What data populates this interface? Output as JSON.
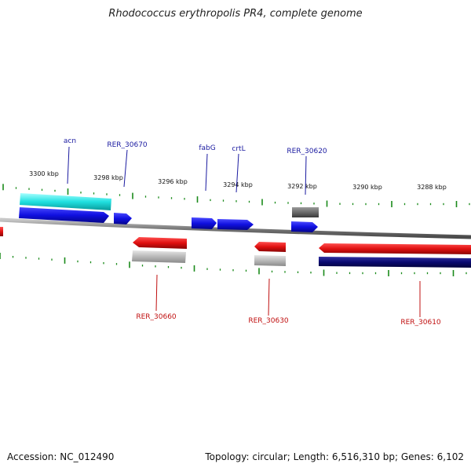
{
  "title": "Rhodococcus erythropolis PR4, complete genome",
  "footer": {
    "accession": "Accession: NC_012490",
    "summary": "Topology: circular; Length: 6,516,310 bp; Genes: 6,102"
  },
  "scale_labels": [
    "3300 kbp",
    "3298 kbp",
    "3296 kbp",
    "3294 kbp",
    "3292 kbp",
    "3290 kbp",
    "3288 kbp"
  ],
  "forward_gene_labels": [
    "acn",
    "RER_30670",
    "fabG",
    "crtL",
    "RER_30620"
  ],
  "reverse_gene_labels": [
    "RER_30660",
    "RER_30630",
    "RER_30610"
  ],
  "colors": {
    "forward_gene": "#1010e0",
    "reverse_gene": "#e01010",
    "cyan_feature": "#20e0e0",
    "navy_feature": "#0a0a70",
    "gray_feature": "#b8b8b8",
    "dark_gray_feature": "#6a6a6a",
    "ticks": "#1a8a1a",
    "backbone": "#888888",
    "forward_label": "#1a1aa0",
    "reverse_label": "#c01010"
  }
}
